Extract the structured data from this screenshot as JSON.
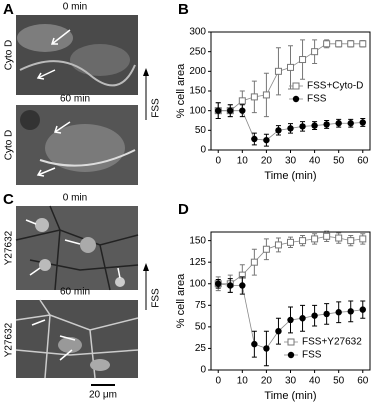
{
  "figure": {
    "panel_labels": [
      "A",
      "B",
      "C",
      "D"
    ],
    "images": [
      {
        "time": "0 min",
        "treatment": "Cyto D"
      },
      {
        "time": "60 min",
        "treatment": "Cyto D"
      },
      {
        "time": "0 min",
        "treatment": "Y27632"
      },
      {
        "time": "60 min",
        "treatment": "Y27632"
      }
    ],
    "flow_label": "FSS",
    "scale_bar": "20 μm"
  },
  "chart_data": [
    {
      "type": "line",
      "xlabel": "Time (min)",
      "ylabel": "% cell area",
      "x": [
        0,
        5,
        10,
        15,
        20,
        25,
        30,
        35,
        40,
        45,
        50,
        55,
        60
      ],
      "xlim": [
        -3,
        63
      ],
      "xticks": [
        0,
        10,
        20,
        30,
        40,
        50,
        60
      ],
      "ylim": [
        0,
        300
      ],
      "yticks": [
        0,
        50,
        100,
        150,
        200,
        250,
        300
      ],
      "legend": "right",
      "series": [
        {
          "name": "FSS+Cyto-D",
          "color": "#777777",
          "marker": "square-open",
          "values": [
            100,
            100,
            125,
            135,
            140,
            200,
            210,
            230,
            250,
            270,
            270,
            270,
            270
          ],
          "errors": [
            20,
            15,
            25,
            40,
            55,
            60,
            55,
            50,
            30,
            10,
            8,
            8,
            8
          ]
        },
        {
          "name": "FSS",
          "color": "#000000",
          "marker": "circle",
          "values": [
            100,
            100,
            100,
            28,
            25,
            50,
            55,
            60,
            62,
            65,
            68,
            68,
            70
          ],
          "errors": [
            20,
            15,
            15,
            15,
            15,
            12,
            12,
            12,
            10,
            10,
            10,
            10,
            10
          ]
        }
      ]
    },
    {
      "type": "line",
      "xlabel": "Time (min)",
      "ylabel": "% cell area",
      "x": [
        0,
        5,
        10,
        15,
        20,
        25,
        30,
        35,
        40,
        45,
        50,
        55,
        60
      ],
      "xlim": [
        -3,
        63
      ],
      "xticks": [
        0,
        10,
        20,
        30,
        40,
        50,
        60
      ],
      "ylim": [
        0,
        160
      ],
      "yticks": [
        0,
        25,
        50,
        75,
        100,
        125,
        150
      ],
      "legend": "lower right",
      "series": [
        {
          "name": "FSS+Y27632",
          "color": "#777777",
          "marker": "square-open",
          "values": [
            100,
            100,
            110,
            125,
            140,
            145,
            148,
            150,
            152,
            155,
            153,
            150,
            152
          ],
          "errors": [
            8,
            10,
            12,
            15,
            12,
            8,
            6,
            6,
            6,
            6,
            6,
            6,
            6
          ]
        },
        {
          "name": "FSS",
          "color": "#000000",
          "marker": "circle",
          "values": [
            100,
            98,
            98,
            30,
            25,
            45,
            58,
            60,
            63,
            65,
            67,
            68,
            70
          ],
          "errors": [
            5,
            8,
            10,
            15,
            20,
            15,
            15,
            15,
            12,
            12,
            12,
            12,
            10
          ]
        }
      ]
    }
  ]
}
